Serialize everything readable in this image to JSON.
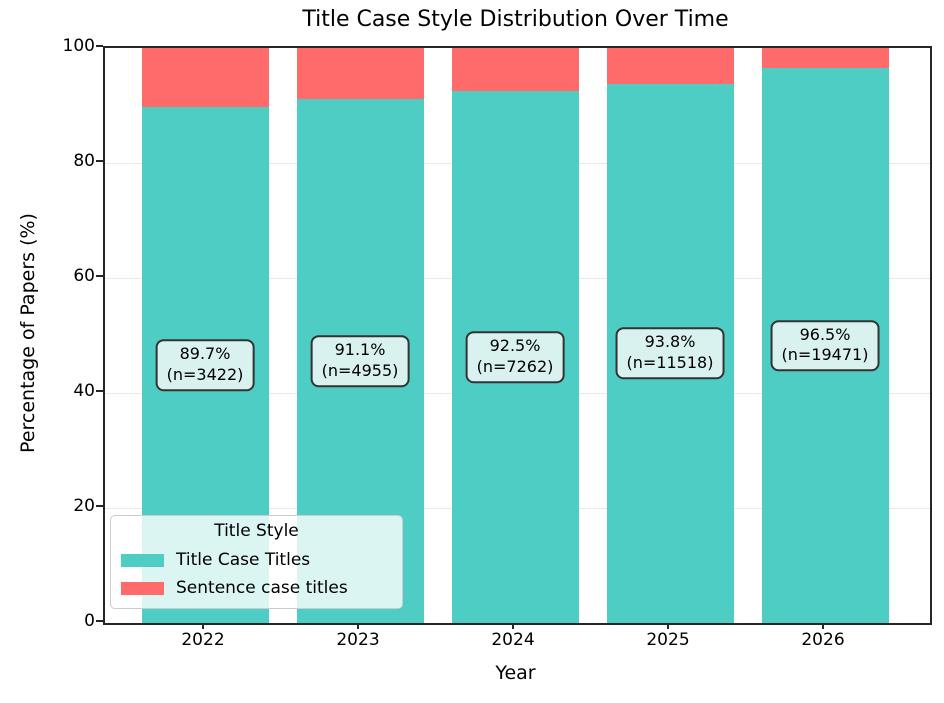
{
  "chart_data": {
    "type": "bar",
    "stacked": true,
    "title": "Title Case Style Distribution Over Time",
    "xlabel": "Year",
    "ylabel": "Percentage of Papers (%)",
    "ylim": [
      0,
      100
    ],
    "yticks": [
      0,
      20,
      40,
      60,
      80,
      100
    ],
    "grid": "horizontal",
    "categories": [
      "2022",
      "2023",
      "2024",
      "2025",
      "2026"
    ],
    "series": [
      {
        "name": "Title Case Titles",
        "color": "#4ECDC4",
        "values": [
          89.7,
          91.1,
          92.5,
          93.8,
          96.5
        ]
      },
      {
        "name": "Sentence case titles",
        "color": "#FF6B6B",
        "values": [
          10.3,
          8.9,
          7.5,
          6.2,
          3.5
        ]
      }
    ],
    "annotations": [
      {
        "pct": "89.7%",
        "n": "(n=3422)"
      },
      {
        "pct": "91.1%",
        "n": "(n=4955)"
      },
      {
        "pct": "92.5%",
        "n": "(n=7262)"
      },
      {
        "pct": "93.8%",
        "n": "(n=11518)"
      },
      {
        "pct": "96.5%",
        "n": "(n=19471)"
      }
    ],
    "legend": {
      "title": "Title Style",
      "entries": [
        "Title Case Titles",
        "Sentence case titles"
      ],
      "position": "lower left"
    },
    "annotation_style": {
      "fill": "#d9f1ef",
      "border": "#333333"
    },
    "axis_color": "#262626"
  }
}
